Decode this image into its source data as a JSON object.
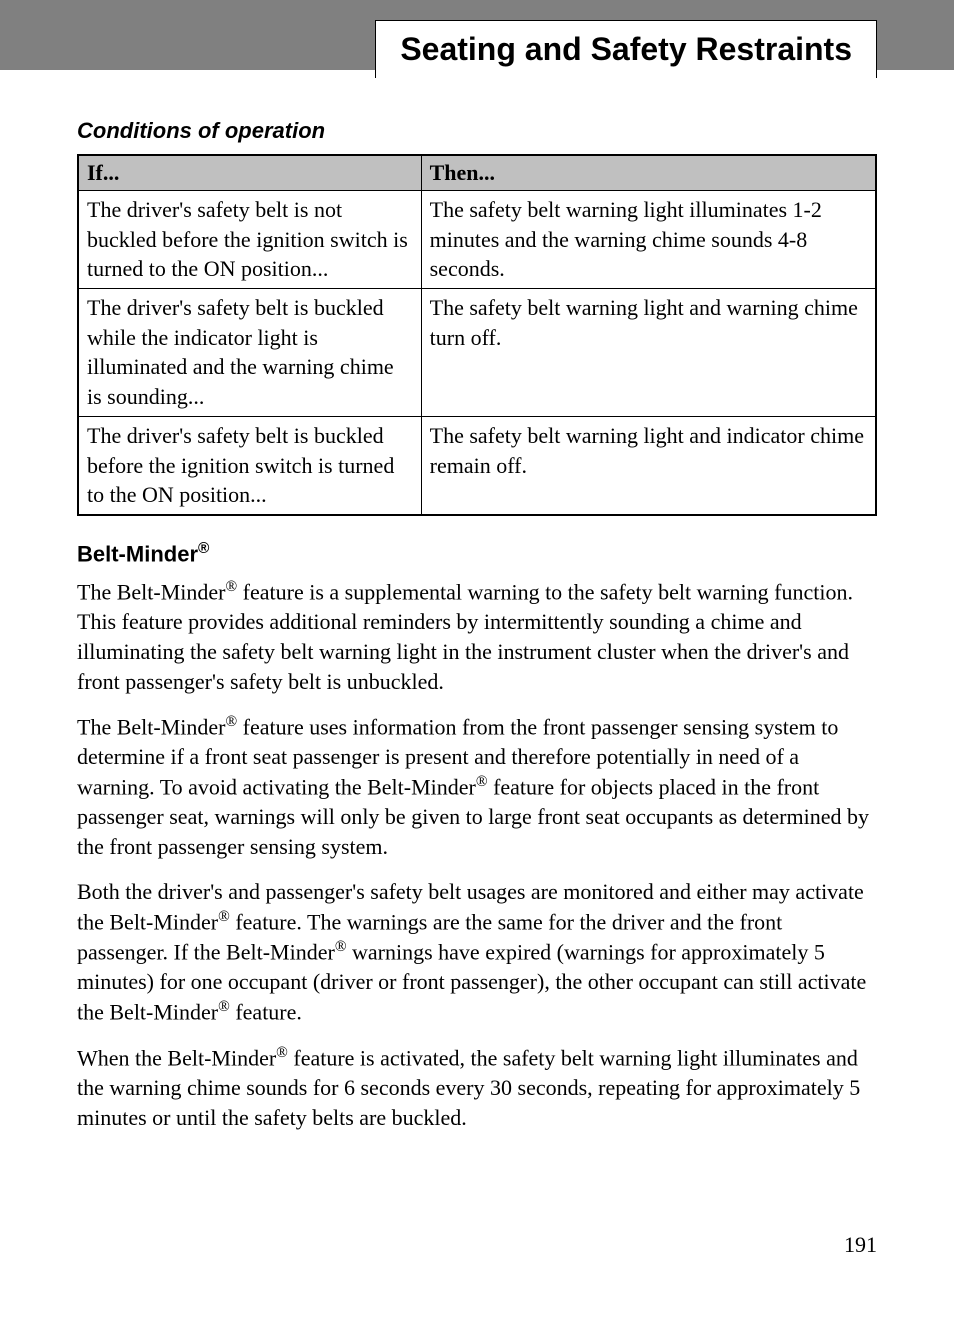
{
  "header": {
    "title": "Seating and Safety Restraints"
  },
  "section": {
    "heading": "Conditions of operation"
  },
  "table": {
    "columns": [
      "If...",
      "Then..."
    ],
    "rows": [
      {
        "if": "The driver's safety belt is not buckled before the ignition switch is turned to the ON position...",
        "then": "The safety belt warning light illuminates 1-2 minutes and the warning chime sounds 4-8 seconds."
      },
      {
        "if": "The driver's safety belt is buckled while the indicator light is illuminated and the warning chime is sounding...",
        "then": "The safety belt warning light and warning chime turn off."
      },
      {
        "if": "The driver's safety belt is buckled before the ignition switch is turned to the ON position...",
        "then": "The safety belt warning light and indicator chime remain off."
      }
    ]
  },
  "beltminder": {
    "heading_prefix": "Belt-Minder",
    "reg_symbol": "®",
    "para1_part1": "The Belt-Minder",
    "para1_part2": " feature is a supplemental warning to the safety belt warning function. This feature provides additional reminders by intermittently sounding a chime and illuminating the safety belt warning light in the instrument cluster when the driver's and front passenger's safety belt is unbuckled.",
    "para2_part1": "The Belt-Minder",
    "para2_part2": " feature uses information from the front passenger sensing system to determine if a front seat passenger is present and therefore potentially in need of a warning. To avoid activating the Belt-Minder",
    "para2_part3": " feature for objects placed in the front passenger seat, warnings will only be given to large front seat occupants as determined by the front passenger sensing system.",
    "para3_part1": "Both the driver's and passenger's safety belt usages are monitored and either may activate the Belt-Minder",
    "para3_part2": " feature. The warnings are the same for the driver and the front passenger. If the Belt-Minder",
    "para3_part3": " warnings have expired (warnings for approximately 5 minutes) for one occupant (driver or front passenger), the other occupant can still activate the Belt-Minder",
    "para3_part4": " feature.",
    "para4_part1": "When the Belt-Minder",
    "para4_part2": " feature is activated, the safety belt warning light illuminates and the warning chime sounds for 6 seconds every 30 seconds, repeating for approximately 5 minutes or until the safety belts are buckled."
  },
  "page_number": "191",
  "styling": {
    "background_color": "#ffffff",
    "header_bg": "#808080",
    "table_header_bg": "#c0c0c0",
    "text_color": "#000000",
    "border_color": "#000000",
    "body_font_size": 22,
    "header_title_font_size": 32
  }
}
